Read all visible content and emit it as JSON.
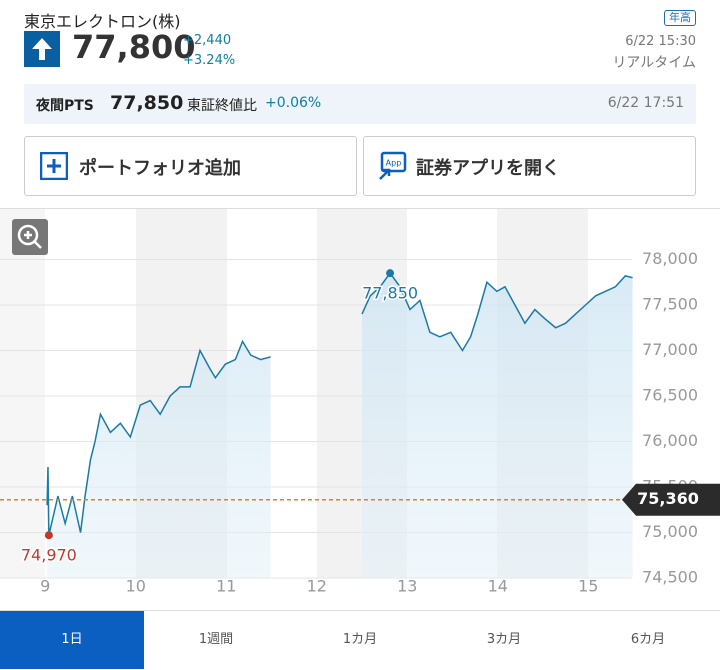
{
  "header": {
    "title": "東京エレクトロン(株)",
    "badge": "年高",
    "price": "77,800",
    "change": "+2,440",
    "change_pct": "+3.24%",
    "date": "6/22 15:30",
    "status": "リアルタイム"
  },
  "pts": {
    "label": "夜間PTS",
    "price": "77,850",
    "compare_label": "東証終値比",
    "compare_pct": "+0.06%",
    "date": "6/22 17:51"
  },
  "buttons": [
    "ポートフォリオ追加",
    "証券アプリを開く"
  ],
  "chart_data": {
    "type": "line",
    "color": "#1c7aa6",
    "x": [
      9.02,
      9.03,
      9.04,
      9.14,
      9.22,
      9.3,
      9.39,
      9.44,
      9.5,
      9.55,
      9.61,
      9.72,
      9.83,
      9.94,
      10.05,
      10.16,
      10.27,
      10.38,
      10.49,
      10.6,
      10.71,
      10.82,
      10.88,
      10.99,
      11.1,
      11.18,
      11.27,
      11.38,
      11.49,
      12.0,
      12.5,
      12.59,
      12.7,
      12.81,
      12.92,
      13.03,
      13.14,
      13.25,
      13.36,
      13.48,
      13.61,
      13.7,
      13.78,
      13.88,
      13.99,
      14.08,
      14.19,
      14.3,
      14.41,
      14.52,
      14.64,
      14.75,
      14.86,
      14.97,
      15.08,
      15.19,
      15.3,
      15.41,
      15.49
    ],
    "values": [
      75300,
      75720,
      74970,
      75400,
      75100,
      75400,
      75000,
      75400,
      75800,
      76000,
      76300,
      76100,
      76200,
      76050,
      76400,
      76450,
      76300,
      76500,
      76600,
      76600,
      77000,
      76800,
      76700,
      76850,
      76900,
      77100,
      76950,
      76900,
      76930,
      null,
      77400,
      77600,
      77700,
      77850,
      77700,
      77450,
      77550,
      77200,
      77150,
      77200,
      77000,
      77150,
      77400,
      77750,
      77650,
      77700,
      77500,
      77300,
      77450,
      77350,
      77250,
      77300,
      77400,
      77500,
      77600,
      77650,
      77700,
      77820,
      77800
    ],
    "xlim": [
      8.5,
      15.5
    ],
    "ylim": [
      74500,
      78500
    ],
    "xticks": [
      9,
      10,
      11,
      12,
      13,
      14,
      15
    ],
    "yticks": [
      {
        "value": 74500,
        "label": "74,500"
      },
      {
        "value": 75000,
        "label": "75,000"
      },
      {
        "value": 75500,
        "label": "75,500"
      },
      {
        "value": 76000,
        "label": "76,000"
      },
      {
        "value": 76500,
        "label": "76,500"
      },
      {
        "value": 77000,
        "label": "77,000"
      },
      {
        "value": 77500,
        "label": "77,500"
      },
      {
        "value": 78000,
        "label": "78,000"
      }
    ],
    "grid": true,
    "annotations": [
      {
        "label": "77,850",
        "value": 77850,
        "x": 12.81,
        "color": "#1c7aa6"
      },
      {
        "label": "74,970",
        "value": 74970,
        "x": 9.04,
        "color": "#c0392b"
      }
    ],
    "reference": {
      "value": 75360,
      "label": "75,360",
      "color": "#e67e22"
    }
  },
  "tabs": [
    "1日",
    "1週間",
    "1カ月",
    "3カ月",
    "6カ月"
  ],
  "active_tab": 0
}
